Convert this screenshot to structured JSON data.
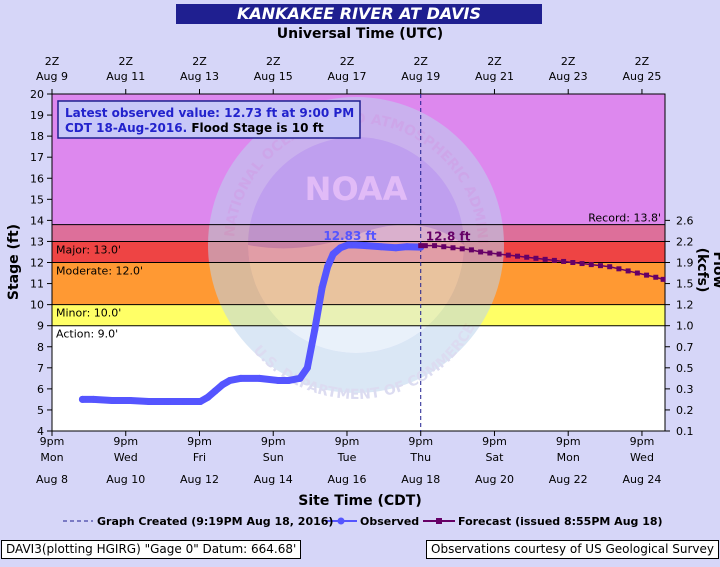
{
  "title": "KANKAKEE RIVER AT DAVIS",
  "top_axis_title": "Universal Time (UTC)",
  "bottom_axis_title": "Site Time (CDT)",
  "y_left_title": "Stage (ft)",
  "y_right_title": "Flow (kcfs)",
  "info_box": {
    "prefix": "Latest observed value: 12.73 ft at 9:00 PM CDT 18-Aug-2016.",
    "suffix": "Flood Stage is 10 ft"
  },
  "legend": {
    "created": "Graph Created (9:19PM Aug 18, 2016)",
    "observed": "Observed",
    "forecast": "Forecast (issued 8:55PM Aug 18)"
  },
  "footer_left": "DAVI3(plotting HGIRG) \"Gage 0\" Datum: 664.68'",
  "footer_right": "Observations courtesy of US Geological Survey",
  "watermark": {
    "top_text": "NATIONAL OCEANIC AND ATMOSPHERIC ADMINISTRATION",
    "bottom_text": "U.S. DEPARTMENT OF COMMERCE",
    "logo": "NOAA"
  },
  "colors": {
    "title_bg": "#1f1f90",
    "record_zone": "#dd88ee",
    "major_zone": "#dd6f9a",
    "moderate_zone": "#ee4444",
    "minor_zone": "#ff9933",
    "action_zone": "#ffff66",
    "normal_zone": "#ffffff",
    "observed": "#5555ff",
    "forecast": "#660066",
    "info_text": "#2222cc"
  },
  "chart_data": {
    "type": "line",
    "x_unit": "days (CDT), Aug 2016",
    "xlim": [
      8.875,
      25.5
    ],
    "ylim": [
      4,
      20
    ],
    "bottom_ticks": [
      {
        "x": 8.875,
        "l1": "9pm",
        "l2": "Mon",
        "l3": "Aug 8"
      },
      {
        "x": 10.875,
        "l1": "9pm",
        "l2": "Wed",
        "l3": "Aug 10"
      },
      {
        "x": 12.875,
        "l1": "9pm",
        "l2": "Fri",
        "l3": "Aug 12"
      },
      {
        "x": 14.875,
        "l1": "9pm",
        "l2": "Sun",
        "l3": "Aug 14"
      },
      {
        "x": 16.875,
        "l1": "9pm",
        "l2": "Tue",
        "l3": "Aug 16"
      },
      {
        "x": 18.875,
        "l1": "9pm",
        "l2": "Thu",
        "l3": "Aug 18"
      },
      {
        "x": 20.875,
        "l1": "9pm",
        "l2": "Sat",
        "l3": "Aug 20"
      },
      {
        "x": 22.875,
        "l1": "9pm",
        "l2": "Mon",
        "l3": "Aug 22"
      },
      {
        "x": 24.875,
        "l1": "9pm",
        "l2": "Wed",
        "l3": "Aug 24"
      }
    ],
    "top_ticks": [
      {
        "x": 8.875,
        "l1": "2Z",
        "l2": "Aug 9"
      },
      {
        "x": 10.875,
        "l1": "2Z",
        "l2": "Aug 11"
      },
      {
        "x": 12.875,
        "l1": "2Z",
        "l2": "Aug 13"
      },
      {
        "x": 14.875,
        "l1": "2Z",
        "l2": "Aug 15"
      },
      {
        "x": 16.875,
        "l1": "2Z",
        "l2": "Aug 17"
      },
      {
        "x": 18.875,
        "l1": "2Z",
        "l2": "Aug 19"
      },
      {
        "x": 20.875,
        "l1": "2Z",
        "l2": "Aug 21"
      },
      {
        "x": 22.875,
        "l1": "2Z",
        "l2": "Aug 23"
      },
      {
        "x": 24.875,
        "l1": "2Z",
        "l2": "Aug 25"
      }
    ],
    "y_ticks_left": [
      4,
      5,
      6,
      7,
      8,
      9,
      10,
      11,
      12,
      13,
      14,
      15,
      16,
      17,
      18,
      19,
      20
    ],
    "y_ticks_right": [
      {
        "stage": 4,
        "label": "0.1"
      },
      {
        "stage": 5,
        "label": "0.2"
      },
      {
        "stage": 6,
        "label": "0.3"
      },
      {
        "stage": 7,
        "label": "0.5"
      },
      {
        "stage": 8,
        "label": "0.7"
      },
      {
        "stage": 9,
        "label": "1.0"
      },
      {
        "stage": 10,
        "label": "1.2"
      },
      {
        "stage": 11,
        "label": "1.5"
      },
      {
        "stage": 12,
        "label": "1.9"
      },
      {
        "stage": 13,
        "label": "2.2"
      },
      {
        "stage": 14,
        "label": "2.6"
      }
    ],
    "flood_categories": [
      {
        "name": "Record: 13.8'",
        "stage": 13.8
      },
      {
        "name": "Major: 13.0'",
        "stage": 13.0
      },
      {
        "name": "Moderate: 12.0'",
        "stage": 12.0
      },
      {
        "name": "Minor: 10.0'",
        "stage": 10.0
      },
      {
        "name": "Action: 9.0'",
        "stage": 9.0
      }
    ],
    "series": [
      {
        "name": "Observed",
        "x": [
          9.7,
          10.0,
          10.5,
          11.0,
          11.5,
          12.0,
          12.5,
          12.9,
          13.1,
          13.3,
          13.5,
          13.7,
          14.0,
          14.5,
          15.0,
          15.3,
          15.6,
          15.8,
          16.0,
          16.2,
          16.35,
          16.5,
          16.7,
          16.9,
          17.1,
          17.4,
          17.8,
          18.2,
          18.5,
          18.875
        ],
        "y": [
          5.5,
          5.5,
          5.45,
          5.45,
          5.4,
          5.4,
          5.4,
          5.4,
          5.6,
          5.9,
          6.2,
          6.4,
          6.5,
          6.5,
          6.4,
          6.4,
          6.5,
          7.0,
          8.8,
          10.8,
          11.8,
          12.4,
          12.7,
          12.83,
          12.83,
          12.8,
          12.75,
          12.7,
          12.75,
          12.73
        ]
      },
      {
        "name": "Forecast",
        "x": [
          18.875,
          19.0,
          19.25,
          19.5,
          19.75,
          20.0,
          20.25,
          20.5,
          20.75,
          21.0,
          21.25,
          21.5,
          21.75,
          22.0,
          22.25,
          22.5,
          22.75,
          23.0,
          23.25,
          23.5,
          23.75,
          24.0,
          24.25,
          24.5,
          24.75,
          25.0,
          25.25,
          25.45
        ],
        "y": [
          12.8,
          12.8,
          12.8,
          12.75,
          12.7,
          12.65,
          12.6,
          12.5,
          12.45,
          12.4,
          12.35,
          12.3,
          12.25,
          12.2,
          12.15,
          12.1,
          12.05,
          12.0,
          11.95,
          11.9,
          11.85,
          11.8,
          11.7,
          11.6,
          11.5,
          11.4,
          11.3,
          11.2
        ]
      }
    ],
    "annotations": [
      {
        "text": "12.83 ft",
        "x": 16.9,
        "y": 12.83,
        "series": "Observed"
      },
      {
        "text": "12.8 ft",
        "x": 18.875,
        "y": 12.8,
        "series": "Forecast"
      }
    ],
    "current_time_x": 18.875
  }
}
